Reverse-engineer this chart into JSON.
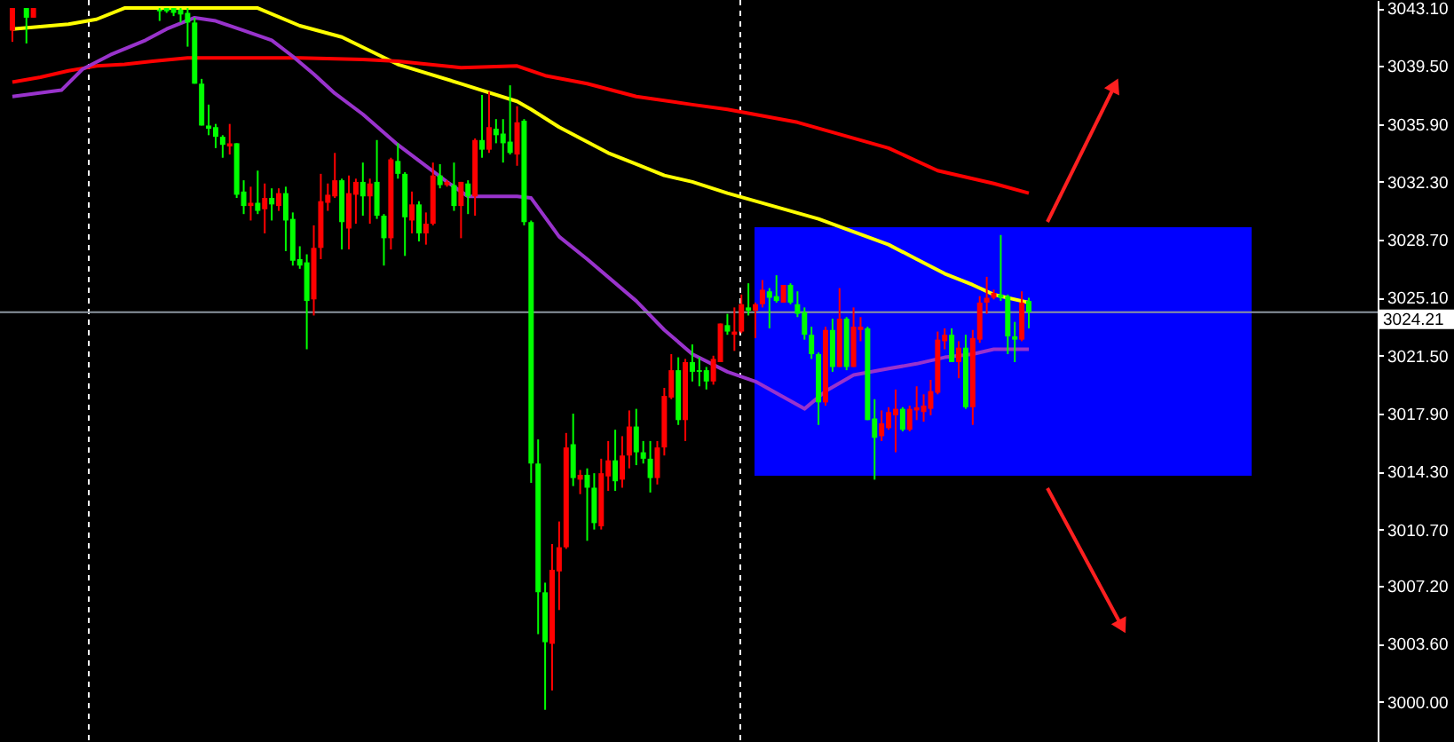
{
  "chart_data": {
    "type": "candlestick",
    "categories": [
      null,
      null,
      null,
      null,
      null,
      null,
      null,
      null,
      null,
      null,
      null,
      null,
      null,
      null,
      null,
      null,
      null,
      null,
      null,
      null,
      null,
      null,
      null,
      null,
      null,
      null,
      null,
      null,
      null,
      null,
      null,
      null,
      null,
      null,
      null,
      null,
      null,
      null,
      null,
      null,
      null,
      null,
      null,
      null,
      null,
      null,
      null,
      null,
      null,
      null,
      null,
      null,
      null,
      null,
      null,
      null,
      null,
      null,
      null,
      null,
      null,
      null,
      null,
      null,
      null,
      null,
      null,
      null,
      null,
      null,
      null,
      null,
      null,
      null,
      null,
      null,
      null,
      null,
      null,
      null,
      null,
      null,
      null,
      null,
      null,
      null,
      null,
      null,
      null,
      null,
      null,
      null,
      null,
      null,
      null,
      null,
      null,
      null,
      null,
      null,
      null,
      null,
      null,
      null,
      null,
      null,
      null,
      null,
      null,
      null,
      null,
      null,
      null,
      null,
      null,
      null,
      null,
      null,
      null,
      null,
      null,
      null,
      null,
      null,
      null,
      null,
      null,
      null,
      null,
      null,
      null,
      null,
      null,
      null,
      null,
      null,
      null,
      null,
      null,
      null,
      null,
      null,
      null,
      null,
      null,
      null,
      null,
      null,
      null,
      null,
      null,
      null,
      null,
      null,
      null,
      null,
      null,
      null,
      null,
      null,
      null,
      null,
      null,
      null,
      null,
      null,
      null,
      null,
      null,
      null,
      null,
      null,
      null,
      null,
      null,
      null,
      null,
      null,
      null,
      null,
      null,
      null,
      null,
      null,
      null,
      null,
      null,
      null,
      null,
      null,
      null,
      null,
      null,
      null
    ],
    "colors": [
      "#ff0000",
      null,
      "#00ff00",
      "#ff0000",
      null,
      null,
      null,
      null,
      null,
      null,
      null,
      null,
      null,
      null,
      null,
      null,
      null,
      null,
      null,
      null,
      null,
      "#00ff00",
      "#00ff00",
      "#00ff00",
      "#00ff00",
      "#00ff00",
      "#00ff00",
      "#00ff00",
      "#00ff00",
      "#00ff00",
      "#00ff00",
      "#ff0000",
      "#00ff00",
      "#00ff00",
      "#ff0000",
      "#00ff00",
      "#ff0000",
      "#00ff00",
      "#ff0000",
      "#00ff00",
      "#00ff00",
      "#00ff00",
      "#00ff00",
      "#ff0000",
      "#ff0000",
      "#ff0000",
      "#ff0000",
      "#00ff00",
      "#ff0000",
      "#ff0000",
      "#00ff00",
      "#ff0000",
      "#00ff00",
      "#00ff00",
      "#ff0000",
      "#00ff00",
      "#00ff00",
      "#ff0000",
      "#00ff00",
      "#ff0000",
      "#ff0000",
      "#00ff00",
      "#ff0000",
      "#00ff00",
      "#ff0000",
      "#00ff00",
      "#ff0000",
      "#00ff00",
      "#ff0000",
      "#00ff00",
      "#00ff00",
      "#00ff00",
      "#ff0000",
      "#00ff00",
      "#00ff00",
      "#00ff00",
      "#00ff00",
      "#ff0000",
      "#ff0000",
      "#ff0000",
      "#00ff00",
      "#ff0000",
      "#00ff00",
      "#00ff00",
      "#ff0000",
      "#ff0000",
      "#00ff00",
      "#ff0000",
      "#ff0000",
      "#00ff00",
      "#00ff00",
      "#00ff00",
      "#ff0000",
      "#ff0000",
      "#ff0000",
      "#00ff00",
      "#ff0000",
      "#00ff00",
      "#00ff00",
      "#00ff00",
      "#ff0000",
      "#ff0000",
      "#00ff00",
      "#ff0000",
      "#ff0000",
      "#00ff00",
      "#ff0000",
      "#ff0000",
      "#00ff00",
      "#00ff00",
      "#ff0000",
      "#00ff00",
      "#00ff00",
      "#00ff00",
      "#00ff00",
      "#00ff00",
      "#ff0000",
      "#00ff00",
      "#ff0000",
      "#00ff00",
      "#ff0000",
      "#ff0000",
      "#00ff00",
      "#00ff00",
      "#ff0000",
      "#ff0000",
      "#ff0000",
      "#00ff00",
      "#ff0000",
      "#ff0000",
      "#ff0000",
      "#ff0000",
      "#ff0000",
      "#ff0000",
      "#00ff00",
      "#ff0000",
      "#00ff00",
      "#ff0000",
      "#ff0000",
      "#ff0000",
      "#ff0000",
      "#00ff00",
      "#00ff00",
      "#00ff00",
      "#ff0000",
      "#00ff00",
      null,
      null,
      null,
      null,
      null,
      null,
      null,
      null,
      null,
      null,
      null,
      null,
      null,
      null,
      null,
      null,
      null,
      null,
      null,
      null,
      null,
      null,
      null,
      null,
      null,
      null,
      null,
      null,
      null,
      null,
      null,
      null,
      null,
      null,
      null,
      null,
      null,
      null,
      null,
      null,
      null,
      null,
      null,
      null,
      null,
      null,
      null,
      null
    ],
    "ohlc": [
      [
        3041.7,
        3043.1,
        3041.0,
        3043.1
      ],
      null,
      [
        3043.1,
        3043.1,
        3040.9,
        3042.5
      ],
      [
        3042.5,
        3043.1,
        3042.5,
        3043.1
      ],
      null,
      null,
      null,
      null,
      null,
      null,
      null,
      null,
      null,
      null,
      null,
      null,
      null,
      null,
      null,
      null,
      null,
      [
        3043.0,
        3043.1,
        3042.3,
        3042.9
      ],
      [
        3043.1,
        3043.1,
        3042.8,
        3042.9
      ],
      [
        3043.1,
        3043.1,
        3042.6,
        3042.8
      ],
      [
        3043.0,
        3043.1,
        3042.2,
        3042.7
      ],
      [
        3042.8,
        3043.1,
        3040.7,
        3042.2
      ],
      [
        3042.2,
        3042.5,
        3038.4,
        3038.4
      ],
      [
        3038.4,
        3038.7,
        3035.8,
        3035.8
      ],
      [
        3035.8,
        3037.1,
        3035.2,
        3035.6
      ],
      [
        3035.7,
        3035.9,
        3034.4,
        3035.1
      ],
      [
        3035.1,
        3035.2,
        3033.8,
        3034.6
      ],
      [
        3034.5,
        3035.9,
        3034.0,
        3034.7
      ],
      [
        3034.7,
        3034.7,
        3031.3,
        3031.5
      ],
      [
        3031.7,
        3032.4,
        3030.3,
        3030.8
      ],
      [
        3030.8,
        3032.0,
        3029.9,
        3031.0
      ],
      [
        3031.0,
        3033.0,
        3030.3,
        3030.5
      ],
      [
        3030.6,
        3032.2,
        3029.1,
        3031.3
      ],
      [
        3031.3,
        3031.9,
        3029.9,
        3030.9
      ],
      [
        3030.8,
        3031.9,
        3030.5,
        3031.6
      ],
      [
        3031.6,
        3032.0,
        3028.0,
        3029.9
      ],
      [
        3030.0,
        3030.4,
        3027.1,
        3027.4
      ],
      [
        3027.5,
        3028.3,
        3026.9,
        3027.1
      ],
      [
        3027.3,
        3027.8,
        3021.9,
        3024.9
      ],
      [
        3025.0,
        3029.6,
        3024.0,
        3028.2
      ],
      [
        3028.2,
        3032.8,
        3027.5,
        3031.1
      ],
      [
        3031.0,
        3032.2,
        3030.5,
        3031.5
      ],
      [
        3031.4,
        3034.1,
        3031.3,
        3032.4
      ],
      [
        3032.4,
        3032.5,
        3028.1,
        3029.8
      ],
      [
        3029.4,
        3032.7,
        3028.1,
        3031.6
      ],
      [
        3031.5,
        3032.5,
        3029.7,
        3032.3
      ],
      [
        3032.3,
        3033.5,
        3030.2,
        3031.4
      ],
      [
        3031.4,
        3032.5,
        3029.7,
        3032.2
      ],
      [
        3032.3,
        3034.9,
        3030.0,
        3030.2
      ],
      [
        3030.2,
        3030.3,
        3027.1,
        3028.8
      ],
      [
        3028.8,
        3033.8,
        3028.1,
        3033.7
      ],
      [
        3033.6,
        3034.7,
        3032.5,
        3032.8
      ],
      [
        3032.8,
        3032.9,
        3027.7,
        3030.1
      ],
      [
        3029.9,
        3031.7,
        3029.1,
        3030.9
      ],
      [
        3030.9,
        3031.1,
        3028.6,
        3029.1
      ],
      [
        3029.1,
        3030.4,
        3028.4,
        3029.7
      ],
      [
        3029.7,
        3033.5,
        3029.6,
        3032.7
      ],
      [
        3032.7,
        3033.4,
        3031.9,
        3032.1
      ],
      [
        3032.1,
        3032.4,
        3032.0,
        3032.3
      ],
      [
        3032.1,
        3033.5,
        3030.5,
        3030.8
      ],
      [
        3030.8,
        3032.3,
        3028.8,
        3032.3
      ],
      [
        3032.2,
        3032.4,
        3030.3,
        3031.4
      ],
      [
        3031.4,
        3035.0,
        3030.2,
        3034.9
      ],
      [
        3034.9,
        3037.7,
        3033.8,
        3034.3
      ],
      [
        3034.3,
        3037.9,
        3034.1,
        3035.7
      ],
      [
        3035.6,
        3036.2,
        3034.7,
        3035.2
      ],
      [
        3035.3,
        3036.2,
        3033.5,
        3034.7
      ],
      [
        3034.8,
        3038.3,
        3034.0,
        3034.1
      ],
      [
        3034.0,
        3037.0,
        3033.3,
        3036.0
      ],
      [
        3036.1,
        3036.2,
        3029.6,
        3029.8
      ],
      [
        3029.8,
        3029.9,
        3013.6,
        3014.8
      ],
      [
        3014.8,
        3016.3,
        3004.2,
        3006.8
      ],
      [
        3006.8,
        3007.4,
        2999.5,
        3003.7
      ],
      [
        3003.6,
        3009.8,
        3000.7,
        3008.2
      ],
      [
        3008.1,
        3011.2,
        3005.7,
        3009.6
      ],
      [
        3009.6,
        3016.7,
        3009.5,
        3015.8
      ],
      [
        3016.0,
        3017.9,
        3013.4,
        3013.9
      ],
      [
        3013.8,
        3014.4,
        3012.9,
        3014.1
      ],
      [
        3014.1,
        3014.5,
        3010.0,
        3013.3
      ],
      [
        3013.3,
        3014.2,
        3010.7,
        3011.1
      ],
      [
        3010.9,
        3015.1,
        3010.7,
        3014.2
      ],
      [
        3014.0,
        3016.2,
        3013.1,
        3015.0
      ],
      [
        3015.0,
        3016.9,
        3013.1,
        3013.7
      ],
      [
        3013.8,
        3016.5,
        3013.3,
        3015.3
      ],
      [
        3015.3,
        3018.1,
        3014.5,
        3017.1
      ],
      [
        3017.1,
        3018.2,
        3014.7,
        3015.5
      ],
      [
        3015.5,
        3016.2,
        3014.8,
        3015.1
      ],
      [
        3015.1,
        3016.2,
        3013.0,
        3013.9
      ],
      [
        3013.9,
        3016.2,
        3013.5,
        3015.8
      ],
      [
        3015.8,
        3019.5,
        3015.3,
        3019.0
      ],
      [
        3018.9,
        3021.6,
        3018.8,
        3020.6
      ],
      [
        3020.6,
        3021.4,
        3017.2,
        3017.5
      ],
      [
        3017.5,
        3021.3,
        3016.2,
        3021.1
      ],
      [
        3021.1,
        3022.2,
        3019.9,
        3020.5
      ],
      [
        3020.6,
        3021.4,
        3019.6,
        3020.5
      ],
      [
        3020.6,
        3020.8,
        3019.4,
        3019.9
      ],
      [
        3019.9,
        3021.5,
        3019.7,
        3021.3
      ],
      [
        3021.1,
        3023.5,
        3021.1,
        3023.5
      ],
      [
        3023.4,
        3024.1,
        3022.8,
        3023.0
      ],
      [
        3022.8,
        3024.5,
        3021.8,
        3023.0
      ],
      [
        3023.0,
        3025.3,
        3022.9,
        3024.7
      ],
      [
        3024.5,
        3026.0,
        3024.0,
        3024.3
      ],
      [
        3024.3,
        3024.8,
        3022.6,
        3024.7
      ],
      [
        3024.7,
        3026.2,
        3024.5,
        3025.6
      ],
      [
        3025.5,
        3025.7,
        3023.2,
        3025.1
      ],
      [
        3025.2,
        3026.5,
        3024.8,
        3024.9
      ],
      [
        3024.8,
        3025.9,
        3024.8,
        3025.9
      ],
      [
        3025.9,
        3026.0,
        3024.7,
        3024.8
      ],
      [
        3024.7,
        3025.5,
        3023.9,
        3024.1
      ],
      [
        3024.2,
        3024.5,
        3022.5,
        3022.8
      ],
      [
        3022.8,
        3023.3,
        3021.3,
        3021.6
      ],
      [
        3021.6,
        3021.7,
        3017.2,
        3018.6
      ],
      [
        3018.6,
        3023.3,
        3018.4,
        3023.1
      ],
      [
        3023.1,
        3023.8,
        3020.5,
        3020.8
      ],
      [
        3020.8,
        3025.7,
        3020.8,
        3023.8
      ],
      [
        3023.8,
        3023.9,
        3020.6,
        3020.8
      ],
      [
        3020.8,
        3024.5,
        3020.8,
        3023.3
      ],
      [
        3023.1,
        3023.9,
        3022.4,
        3023.3
      ],
      [
        3023.2,
        3023.3,
        3017.5,
        3017.5
      ],
      [
        3017.6,
        3018.8,
        3013.8,
        3016.4
      ],
      [
        3016.5,
        3018.1,
        3016.2,
        3017.3
      ],
      [
        3017.0,
        3018.3,
        3016.9,
        3018.0
      ],
      [
        3017.8,
        3019.4,
        3015.5,
        3018.2
      ],
      [
        3018.2,
        3018.3,
        3016.8,
        3016.9
      ],
      [
        3016.9,
        3018.4,
        3016.8,
        3018.2
      ],
      [
        3018.1,
        3019.6,
        3017.5,
        3018.3
      ],
      [
        3018.0,
        3019.1,
        3017.4,
        3018.4
      ],
      [
        3018.2,
        3020.0,
        3017.8,
        3019.3
      ],
      [
        3019.2,
        3023.0,
        3019.1,
        3022.5
      ],
      [
        3022.4,
        3023.2,
        3021.9,
        3022.8
      ],
      [
        3022.8,
        3023.2,
        3021.1,
        3021.1
      ],
      [
        3021.1,
        3022.4,
        3020.1,
        3022.0
      ],
      [
        3022.0,
        3022.8,
        3018.2,
        3018.3
      ],
      [
        3018.3,
        3023.1,
        3017.2,
        3022.6
      ],
      [
        3022.5,
        3025.2,
        3022.3,
        3024.8
      ],
      [
        3024.8,
        3026.4,
        3024.1,
        3025.1
      ],
      [
        3025.1,
        3025.6,
        3025.0,
        3025.4
      ],
      [
        3025.3,
        3029.0,
        3024.9,
        3025.1
      ],
      [
        3025.2,
        3025.3,
        3021.6,
        3022.7
      ],
      [
        3022.7,
        3023.6,
        3021.1,
        3022.5
      ],
      [
        3022.5,
        3025.5,
        3022.4,
        3024.8
      ],
      [
        3024.9,
        3025.1,
        3023.2,
        3024.21
      ],
      null,
      null,
      null,
      null,
      null,
      null,
      null,
      null,
      null,
      null,
      null,
      null,
      null,
      null,
      null,
      null,
      null,
      null,
      null,
      null,
      null,
      null,
      null,
      null,
      null,
      null,
      null,
      null,
      null,
      null,
      null,
      null,
      null,
      null,
      null,
      null,
      null,
      null,
      null,
      null,
      null,
      null,
      null,
      null,
      null,
      null,
      null,
      null
    ],
    "series": [
      {
        "type": "line",
        "color": "#ffff00",
        "values": [
          3041.8,
          null,
          null,
          null,
          null,
          null,
          null,
          null,
          3042.1,
          null,
          null,
          null,
          3042.4,
          null,
          null,
          null,
          3043.1,
          null,
          null,
          null,
          null,
          null,
          null,
          null,
          null,
          null,
          null,
          null,
          null,
          null,
          null,
          null,
          null,
          null,
          null,
          3043.1,
          null,
          null,
          null,
          null,
          null,
          3042.0,
          null,
          null,
          null,
          null,
          null,
          3041.3,
          null,
          null,
          null,
          null,
          null,
          null,
          null,
          3039.6,
          null,
          null,
          null,
          null,
          null,
          null,
          null,
          null,
          3038.4,
          null,
          null,
          null,
          null,
          null,
          null,
          null,
          3037.3,
          null,
          3036.8,
          null,
          null,
          null,
          3035.7,
          null,
          null,
          null,
          null,
          null,
          null,
          3034.1,
          null,
          null,
          null,
          3033.4,
          null,
          null,
          null,
          3032.7,
          null,
          null,
          null,
          3032.3,
          null,
          null,
          null,
          null,
          3031.6,
          null,
          null,
          null,
          null,
          null,
          null,
          null,
          null,
          null,
          null,
          null,
          null,
          3030.0,
          null,
          null,
          null,
          null,
          3029.2,
          null,
          null,
          null,
          null,
          3028.4,
          null,
          null,
          null,
          3027.5,
          null,
          null,
          null,
          3026.6,
          null,
          null,
          null,
          3025.9,
          null,
          null,
          3025.3,
          null,
          null,
          null,
          null,
          3024.8,
          null,
          null,
          null,
          null,
          null,
          null,
          null,
          null,
          null,
          null,
          null,
          null,
          null,
          null,
          null,
          null,
          null,
          null,
          null,
          null,
          null,
          null,
          null,
          null,
          null,
          null,
          null,
          null,
          null,
          null,
          null,
          null,
          null,
          null,
          null,
          null,
          null,
          null,
          null,
          null,
          null,
          null,
          null,
          null,
          null,
          null,
          null,
          null
        ]
      },
      {
        "type": "line",
        "color": "#ff0000",
        "values": [
          3038.5,
          null,
          null,
          null,
          3038.8,
          null,
          null,
          null,
          3039.2,
          null,
          null,
          null,
          3039.5,
          null,
          null,
          null,
          3039.6,
          null,
          null,
          null,
          3039.8,
          null,
          null,
          null,
          null,
          3040.0,
          null,
          null,
          null,
          null,
          null,
          null,
          null,
          3040.0,
          null,
          null,
          null,
          null,
          null,
          null,
          null,
          3040.0,
          null,
          null,
          null,
          null,
          null,
          null,
          null,
          null,
          3039.9,
          null,
          null,
          null,
          null,
          3039.8,
          null,
          null,
          null,
          null,
          null,
          null,
          null,
          null,
          3039.4,
          null,
          null,
          null,
          null,
          null,
          null,
          null,
          3039.5,
          null,
          null,
          null,
          3038.9,
          null,
          null,
          null,
          null,
          null,
          3038.4,
          null,
          null,
          null,
          null,
          null,
          null,
          3037.6,
          null,
          null,
          null,
          null,
          null,
          null,
          null,
          3037.1,
          null,
          null,
          null,
          null,
          3036.8,
          null,
          null,
          null,
          null,
          null,
          null,
          null,
          null,
          null,
          3036.0,
          null,
          null,
          null,
          null,
          null,
          null,
          null,
          null,
          null,
          null,
          null,
          null,
          3034.4,
          null,
          null,
          null,
          null,
          null,
          null,
          3033.0,
          null,
          null,
          null,
          null,
          null,
          null,
          null,
          3032.2,
          null,
          null,
          null,
          null,
          3031.6,
          null,
          null,
          null,
          null,
          null,
          null,
          null,
          null,
          null,
          null,
          null,
          null,
          null,
          null,
          null,
          null,
          null,
          null,
          null,
          null,
          null,
          null,
          null,
          null,
          null,
          null,
          null,
          null,
          null,
          null,
          null,
          null,
          null,
          null,
          null,
          null,
          null,
          null,
          null,
          null,
          null,
          null,
          null,
          null,
          null,
          null,
          null,
          null
        ]
      },
      {
        "type": "line",
        "color": "#9933cc",
        "values": [
          3037.6,
          null,
          null,
          null,
          null,
          null,
          null,
          3038.0,
          null,
          null,
          3039.3,
          null,
          null,
          null,
          3040.2,
          null,
          null,
          null,
          null,
          3041.1,
          null,
          null,
          3041.8,
          null,
          null,
          null,
          3042.5,
          null,
          null,
          3042.3,
          null,
          null,
          null,
          3041.7,
          null,
          null,
          null,
          3041.1,
          null,
          null,
          3040.1,
          null,
          null,
          3039.0,
          null,
          null,
          3037.8,
          null,
          null,
          null,
          3036.5,
          null,
          null,
          null,
          null,
          3034.6,
          null,
          null,
          null,
          null,
          null,
          null,
          3032.3,
          null,
          null,
          3031.4,
          null,
          null,
          null,
          null,
          null,
          null,
          3031.4,
          null,
          3031.3,
          null,
          null,
          null,
          3028.9,
          null,
          null,
          null,
          3027.5,
          null,
          null,
          null,
          null,
          null,
          null,
          3024.9,
          null,
          null,
          null,
          3023.1,
          null,
          null,
          null,
          3021.6,
          null,
          null,
          null,
          null,
          3020.5,
          null,
          null,
          null,
          3019.9,
          null,
          null,
          null,
          null,
          null,
          null,
          3018.2,
          null,
          null,
          3019.3,
          null,
          null,
          null,
          3020.3,
          null,
          null,
          null,
          null,
          3020.7,
          null,
          null,
          null,
          3021.0,
          null,
          null,
          null,
          3021.4,
          null,
          null,
          null,
          3021.6,
          null,
          null,
          3021.9,
          null,
          null,
          null,
          null,
          3021.9,
          null,
          null,
          null,
          null,
          null,
          null,
          null,
          null,
          null,
          null,
          null,
          null,
          null,
          null,
          null,
          null,
          null,
          null,
          null,
          null,
          null,
          null,
          null,
          null,
          null,
          null,
          null,
          null,
          null,
          null,
          null,
          null,
          null,
          null,
          null,
          null,
          null,
          null,
          null,
          null,
          null,
          null,
          null,
          null,
          null,
          null,
          null,
          null
        ]
      }
    ],
    "ylim": [
      2997.5,
      3043.6
    ],
    "yticks": [
      {
        "value": 3000,
        "label": "3000.00"
      },
      {
        "value": 3003.6,
        "label": "3003.60"
      },
      {
        "value": 3007.2,
        "label": "3007.20"
      },
      {
        "value": 3010.7,
        "label": "3010.70"
      },
      {
        "value": 3014.3,
        "label": "3014.30"
      },
      {
        "value": 3017.9,
        "label": "3017.90"
      },
      {
        "value": 3021.5,
        "label": "3021.50"
      },
      {
        "value": 3025.1,
        "label": "3025.10"
      },
      {
        "value": 3028.7,
        "label": "3028.70"
      },
      {
        "value": 3032.3,
        "label": "3032.30"
      },
      {
        "value": 3035.9,
        "label": "3035.90"
      },
      {
        "value": 3039.5,
        "label": "3039.50"
      },
      {
        "value": 3043.1,
        "label": "3043.10"
      }
    ],
    "ref_lines": [
      {
        "axis": "y",
        "value": 3024.21,
        "label": "3024.21",
        "color": "#8c96a0"
      }
    ],
    "grid": false
  }
}
